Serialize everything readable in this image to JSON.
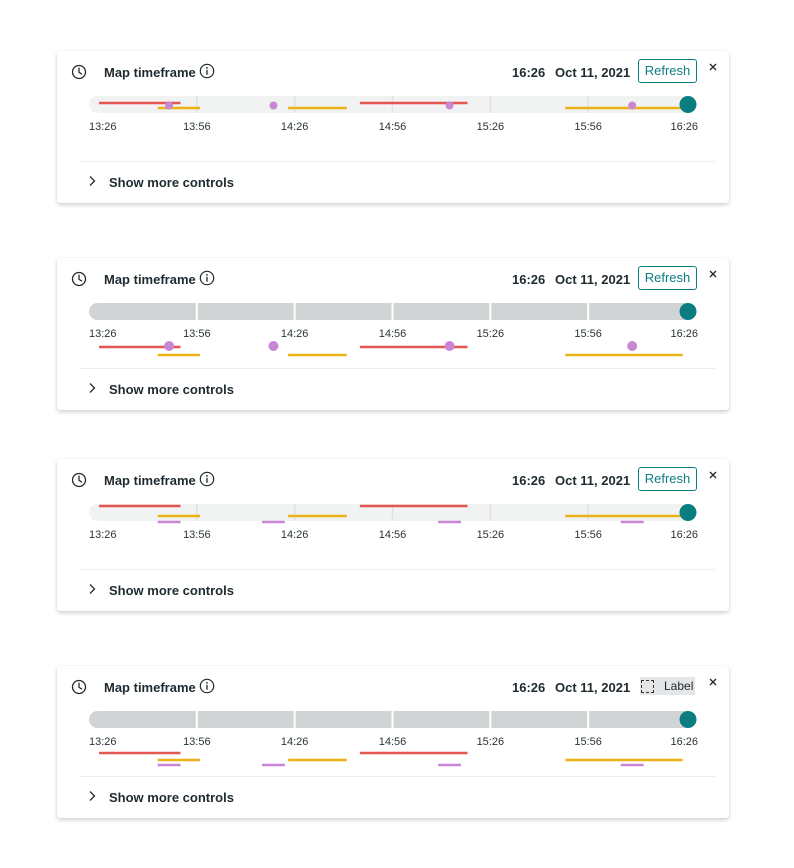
{
  "colors": {
    "accent": "#0b7d80",
    "track_light": "#f1f2f2",
    "track_dark": "#d1d4d5",
    "red": "#e45652",
    "yellow": "#eeb219",
    "purple": "#c886d4",
    "text": "#1f2a30"
  },
  "icons": {
    "clock": "clock-icon",
    "info": "info-icon",
    "close": "close-icon",
    "chevron": "chevron-right-icon",
    "label_checkbox": "dashed-checkbox-icon"
  },
  "ticks": [
    "13:26",
    "13:56",
    "14:26",
    "14:56",
    "15:26",
    "15:56",
    "16:26"
  ],
  "timeframe": {
    "start_min": 0,
    "end_min": 180
  },
  "events": {
    "red": [
      [
        0,
        25
      ],
      [
        80,
        113
      ]
    ],
    "yellow": [
      [
        18,
        31
      ],
      [
        58,
        76
      ],
      [
        143,
        179
      ]
    ],
    "purple": [
      [
        18,
        25
      ],
      [
        50,
        57
      ],
      [
        104,
        111
      ],
      [
        160,
        167
      ]
    ]
  },
  "cards": [
    {
      "title": "Map timeframe",
      "time": "16:26",
      "date": "Oct 11, 2021",
      "action": "Refresh",
      "more_controls": "Show more controls",
      "variant": "light-inline-dots"
    },
    {
      "title": "Map timeframe",
      "time": "16:26",
      "date": "Oct 11, 2021",
      "action": "Refresh",
      "more_controls": "Show more controls",
      "variant": "dark-below-dots"
    },
    {
      "title": "Map timeframe",
      "time": "16:26",
      "date": "Oct 11, 2021",
      "action": "Refresh",
      "more_controls": "Show more controls",
      "variant": "light-inline-bars"
    },
    {
      "title": "Map timeframe",
      "time": "16:26",
      "date": "Oct 11, 2021",
      "label_chip": "Label",
      "more_controls": "Show more controls",
      "variant": "dark-below-bars"
    }
  ]
}
